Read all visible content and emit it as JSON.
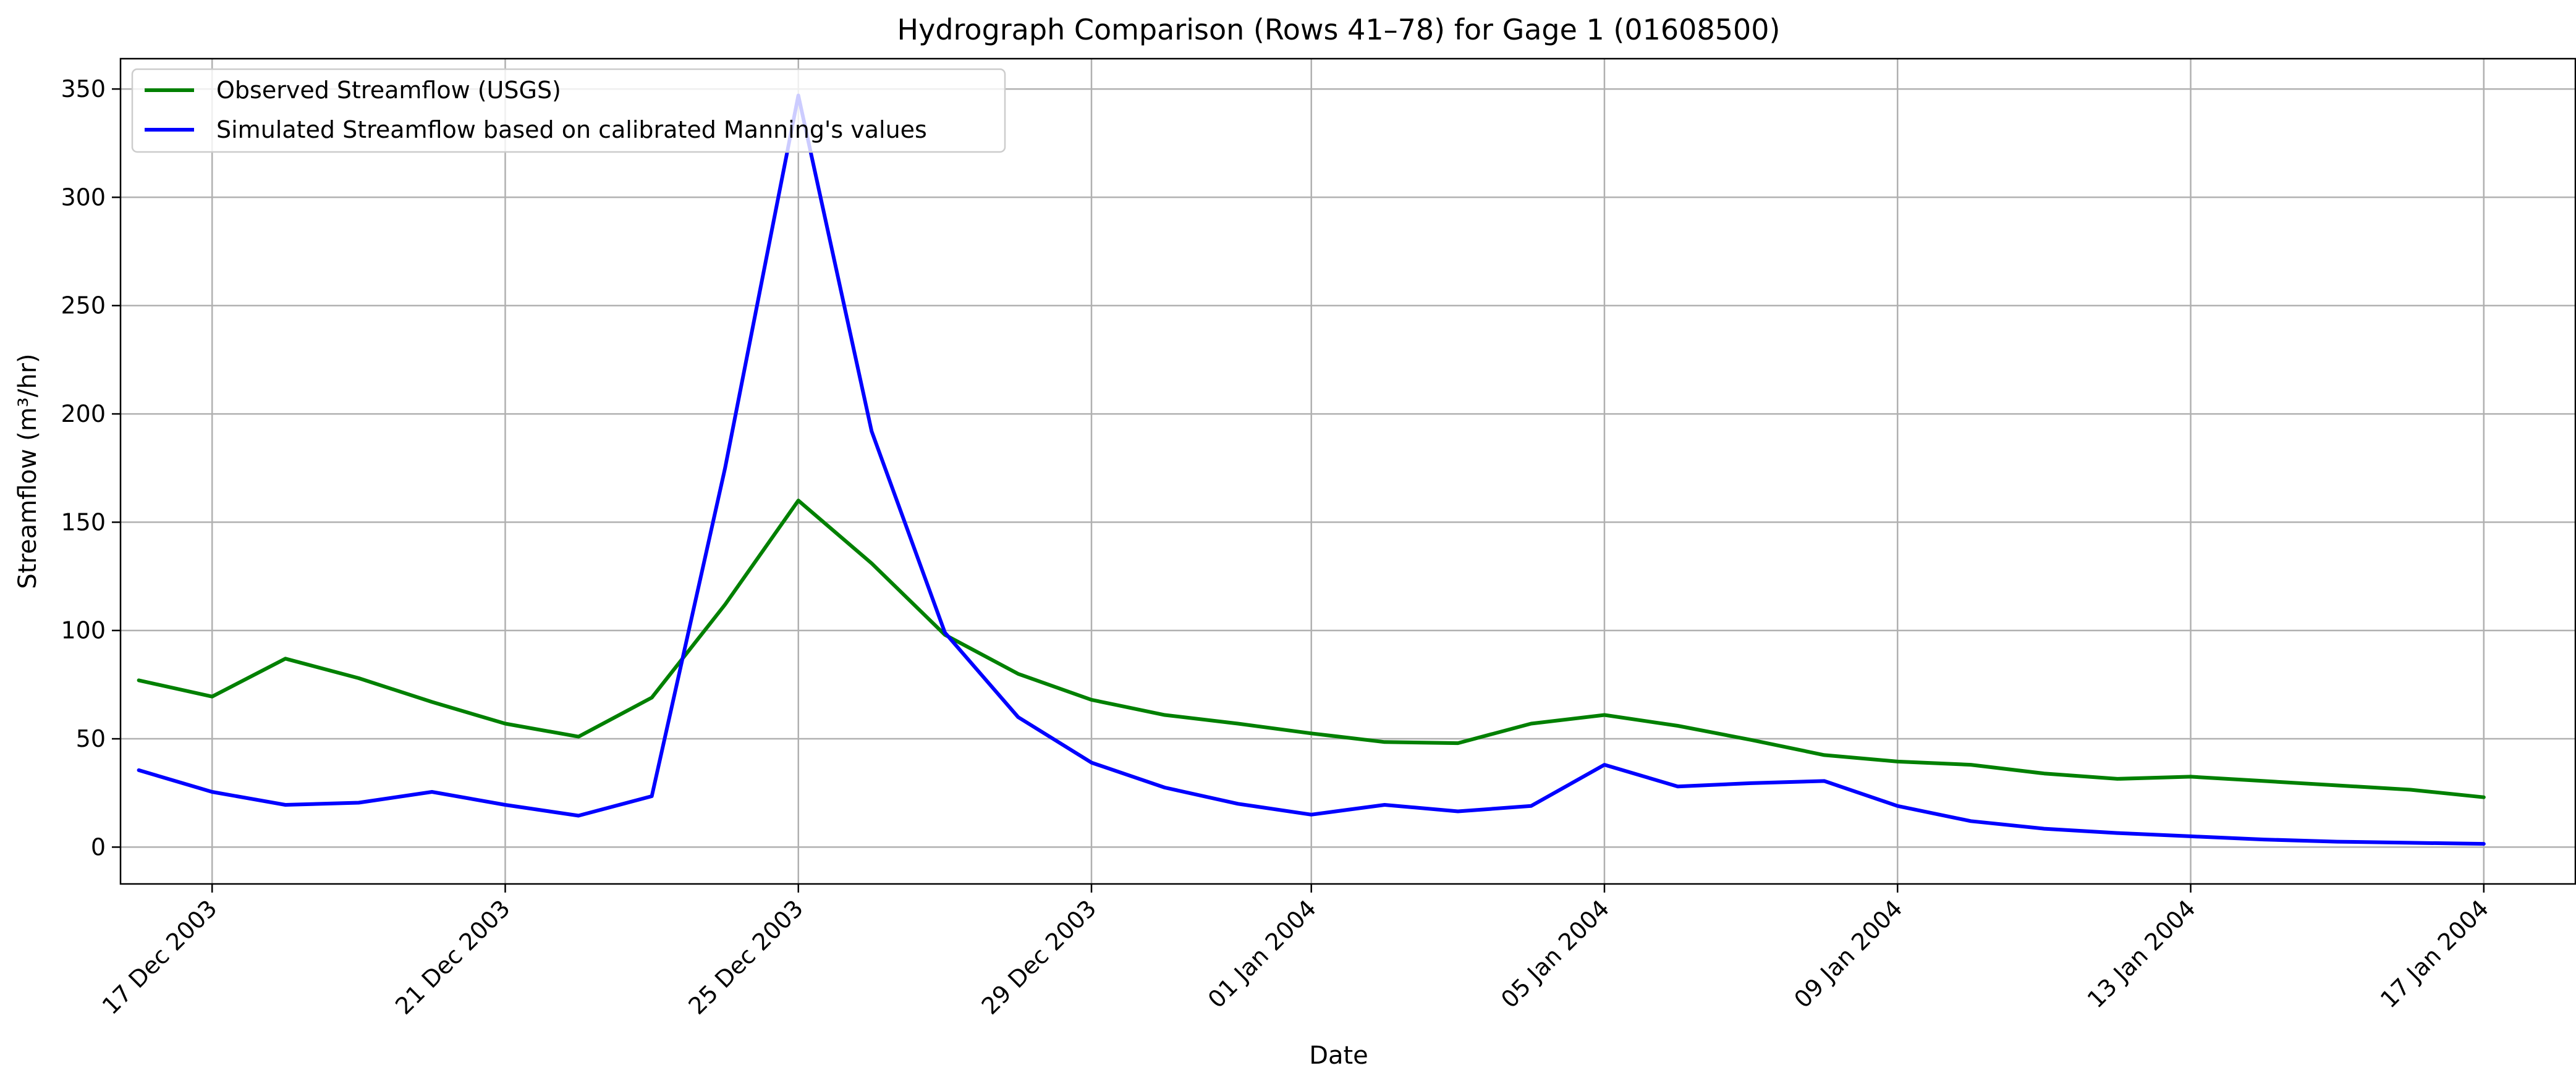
{
  "chart_data": {
    "type": "line",
    "title": "Hydrograph Comparison (Rows 41–78) for Gage 1 (01608500)",
    "xlabel": "Date",
    "ylabel": "Streamflow (m³/hr)",
    "x": [
      "2003-12-16",
      "2003-12-17",
      "2003-12-18",
      "2003-12-19",
      "2003-12-20",
      "2003-12-21",
      "2003-12-22",
      "2003-12-23",
      "2003-12-24",
      "2003-12-25",
      "2003-12-26",
      "2003-12-27",
      "2003-12-28",
      "2003-12-29",
      "2003-12-30",
      "2003-12-31",
      "2004-01-01",
      "2004-01-02",
      "2004-01-03",
      "2004-01-04",
      "2004-01-05",
      "2004-01-06",
      "2004-01-07",
      "2004-01-08",
      "2004-01-09",
      "2004-01-10",
      "2004-01-11",
      "2004-01-12",
      "2004-01-13",
      "2004-01-14",
      "2004-01-15",
      "2004-01-16",
      "2004-01-17"
    ],
    "series": [
      {
        "name": "Observed Streamflow (USGS)",
        "color": "#008000",
        "values": [
          77,
          69.5,
          87,
          78,
          67,
          57,
          51,
          69,
          112,
          160,
          131,
          98,
          80,
          68,
          61,
          57,
          52.5,
          48.5,
          48,
          57,
          61,
          56,
          49.5,
          42.5,
          39.5,
          38,
          34,
          31.5,
          32.5,
          30.5,
          28.5,
          26.5,
          23
        ]
      },
      {
        "name": "Simulated Streamflow based on calibrated Manning's values",
        "color": "#0000ff",
        "values": [
          35.5,
          25.5,
          19.5,
          20.5,
          25.5,
          19.5,
          14.5,
          23.5,
          175,
          347,
          192,
          99,
          60,
          39,
          27.5,
          20,
          15,
          19.5,
          16.5,
          19,
          38,
          28,
          29.5,
          30.5,
          19,
          12,
          8.5,
          6.5,
          5,
          3.5,
          2.5,
          2,
          1.5
        ]
      }
    ],
    "x_ticks": [
      {
        "value": "2003-12-17",
        "label": "17 Dec 2003"
      },
      {
        "value": "2003-12-21",
        "label": "21 Dec 2003"
      },
      {
        "value": "2003-12-25",
        "label": "25 Dec 2003"
      },
      {
        "value": "2003-12-29",
        "label": "29 Dec 2003"
      },
      {
        "value": "2004-01-01",
        "label": "01 Jan 2004"
      },
      {
        "value": "2004-01-05",
        "label": "05 Jan 2004"
      },
      {
        "value": "2004-01-09",
        "label": "09 Jan 2004"
      },
      {
        "value": "2004-01-13",
        "label": "13 Jan 2004"
      },
      {
        "value": "2004-01-17",
        "label": "17 Jan 2004"
      }
    ],
    "xlim": [
      "2003-12-15T18:00",
      "2004-01-18T06:00"
    ],
    "y_ticks": [
      0,
      50,
      100,
      150,
      200,
      250,
      300,
      350
    ],
    "ylim": [
      -17,
      364
    ],
    "grid": true,
    "legend": "upper-left"
  }
}
